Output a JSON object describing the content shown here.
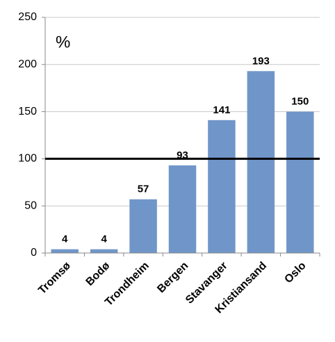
{
  "chart_data": {
    "type": "bar",
    "unit_label": "%",
    "categories": [
      "Tromsø",
      "Bodø",
      "Trondheim",
      "Bergen",
      "Stavanger",
      "Kristiansand",
      "Oslo"
    ],
    "values": [
      4,
      4,
      57,
      93,
      141,
      193,
      150
    ],
    "color": "#7096c9",
    "ylim": [
      0,
      250
    ],
    "yticks": [
      0,
      50,
      100,
      150,
      200,
      250
    ],
    "grid": true,
    "reference_line": 100,
    "reference_line_color": "#000000"
  }
}
